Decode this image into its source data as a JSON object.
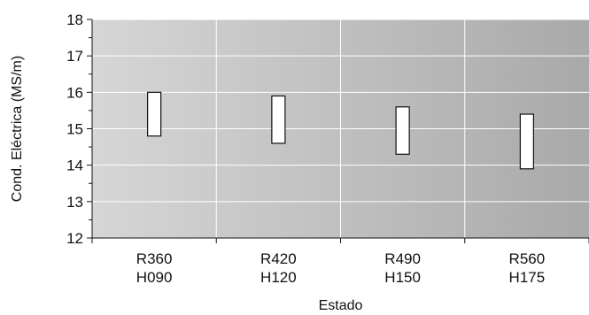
{
  "chart_data": {
    "type": "bar",
    "subtype": "floating-range",
    "title": "",
    "xlabel": "Estado",
    "ylabel": "Cond. Eléctrica (MS/m)",
    "ylim": [
      12,
      18
    ],
    "yticks": [
      12,
      13,
      14,
      15,
      16,
      17,
      18
    ],
    "grid": true,
    "legend": "none",
    "categories": [
      [
        "R360",
        "H090"
      ],
      [
        "R420",
        "H120"
      ],
      [
        "R490",
        "H150"
      ],
      [
        "R560",
        "H175"
      ]
    ],
    "series": [
      {
        "ranges": [
          {
            "low": 14.8,
            "high": 16.0
          },
          {
            "low": 14.6,
            "high": 15.9
          },
          {
            "low": 14.3,
            "high": 15.6
          },
          {
            "low": 13.9,
            "high": 15.4
          }
        ]
      }
    ],
    "colors": {
      "bar_fill": "#ffffff",
      "bar_stroke": "#111111",
      "plot_bg_start": "#d6d6d6",
      "plot_bg_end": "#a9a9a9",
      "grid": "#ffffff",
      "axis": "#111111"
    }
  }
}
